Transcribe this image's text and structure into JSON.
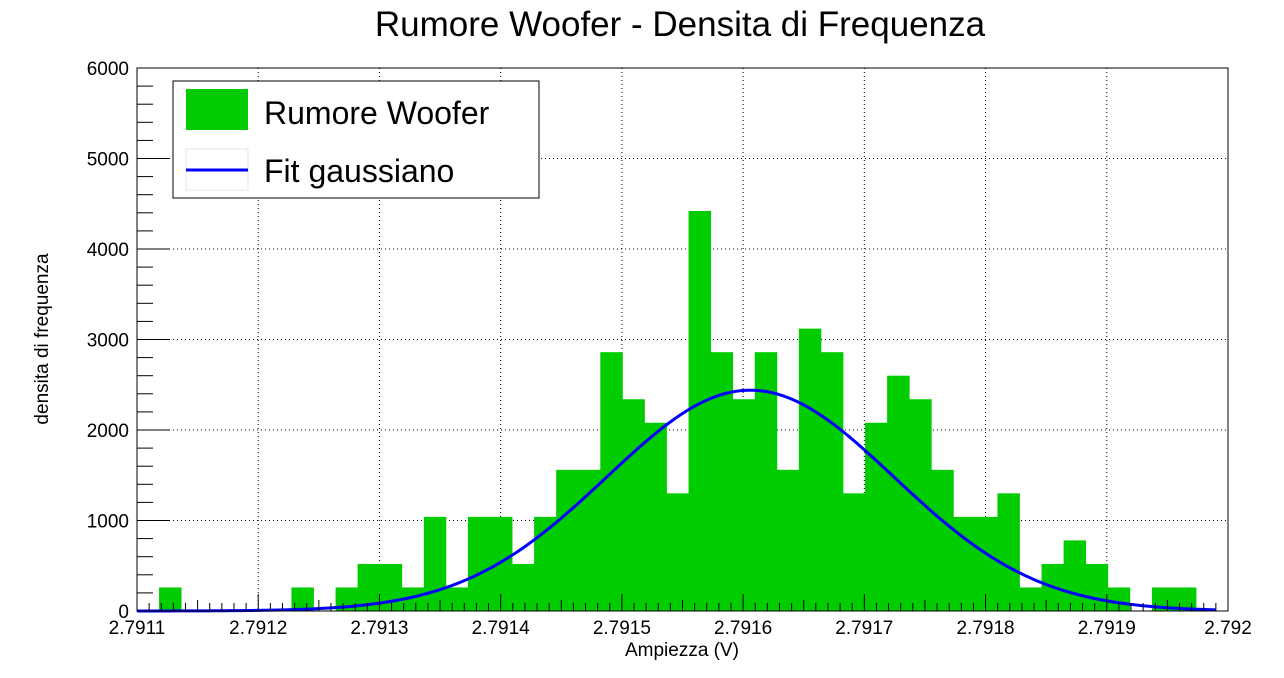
{
  "chart_data": {
    "type": "bar",
    "title": "Rumore Woofer - Densita di Frequenza",
    "xlabel": "Ampiezza (V)",
    "ylabel": "densita di frequenza",
    "xlim": [
      2.7911,
      2.792
    ],
    "ylim": [
      0,
      6000
    ],
    "x_ticks": [
      {
        "value": 2.7911,
        "label": "2.7911"
      },
      {
        "value": 2.7912,
        "label": "2.7912"
      },
      {
        "value": 2.7913,
        "label": "2.7913"
      },
      {
        "value": 2.7914,
        "label": "2.7914"
      },
      {
        "value": 2.7915,
        "label": "2.7915"
      },
      {
        "value": 2.7916,
        "label": "2.7916"
      },
      {
        "value": 2.7917,
        "label": "2.7917"
      },
      {
        "value": 2.7918,
        "label": "2.7918"
      },
      {
        "value": 2.7919,
        "label": "2.7919"
      },
      {
        "value": 2.792,
        "label": "2.792"
      }
    ],
    "y_ticks": [
      {
        "value": 0,
        "label": "0"
      },
      {
        "value": 1000,
        "label": "1000"
      },
      {
        "value": 2000,
        "label": "2000"
      },
      {
        "value": 3000,
        "label": "3000"
      },
      {
        "value": 4000,
        "label": "4000"
      },
      {
        "value": 5000,
        "label": "5000"
      },
      {
        "value": 6000,
        "label": "6000"
      }
    ],
    "grid": true,
    "legend_position": "top-left",
    "legend": [
      {
        "name": "Rumore Woofer",
        "kind": "fill",
        "color": "#00cc00"
      },
      {
        "name": "Fit gaussiano",
        "kind": "line",
        "color": "#0000ff"
      }
    ],
    "histogram": {
      "name": "Rumore Woofer",
      "color": "#00cc00",
      "bin_start": 2.7911,
      "bin_width": 1.82e-05,
      "values": [
        0,
        260,
        0,
        0,
        0,
        0,
        0,
        260,
        0,
        260,
        520,
        520,
        260,
        1040,
        260,
        1040,
        1040,
        520,
        1040,
        1560,
        1560,
        2860,
        2340,
        2080,
        1300,
        4420,
        2860,
        2340,
        2860,
        1560,
        3120,
        2860,
        1300,
        2080,
        2600,
        2340,
        1560,
        1040,
        1040,
        1300,
        260,
        520,
        780,
        520,
        260,
        0,
        260,
        260,
        0,
        0
      ]
    },
    "fit": {
      "name": "Fit gaussiano",
      "type": "gaussian",
      "color": "#0000ff",
      "amplitude": 2440,
      "mean": 2.791606,
      "sigma": 0.0001185,
      "x_range": [
        2.7911,
        2.79199
      ]
    }
  }
}
